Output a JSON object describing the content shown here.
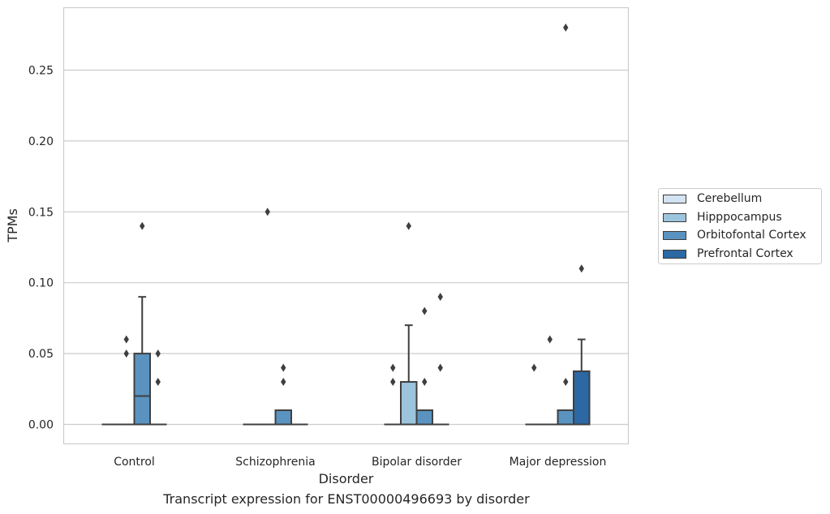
{
  "chart_data": {
    "type": "box",
    "xlabel": "Disorder",
    "ylabel": "TPMs",
    "ylim": [
      -0.014,
      0.294
    ],
    "yticks": [
      "0.00",
      "0.05",
      "0.10",
      "0.15",
      "0.20",
      "0.25"
    ],
    "ytick_values": [
      0.0,
      0.05,
      0.1,
      0.15,
      0.2,
      0.25
    ],
    "grid": true,
    "legend_placement": "right",
    "categories": [
      "Control",
      "Schizophrenia",
      "Bipolar disorder",
      "Major depression"
    ],
    "series": [
      {
        "name": "Cerebellum",
        "color": "#d3e3f2",
        "boxes": [
          {
            "q1": 0,
            "median": 0,
            "q3": 0,
            "whisker_low": 0,
            "whisker_high": 0,
            "outliers": []
          },
          {
            "q1": 0,
            "median": 0,
            "q3": 0,
            "whisker_low": 0,
            "whisker_high": 0,
            "outliers": []
          },
          {
            "q1": 0,
            "median": 0,
            "q3": 0,
            "whisker_low": 0,
            "whisker_high": 0,
            "outliers": [
              0.04,
              0.03
            ]
          },
          {
            "q1": 0,
            "median": 0,
            "q3": 0,
            "whisker_low": 0,
            "whisker_high": 0,
            "outliers": [
              0.04
            ]
          }
        ]
      },
      {
        "name": "Hipppocampus",
        "color": "#9cc4dc",
        "boxes": [
          {
            "q1": 0,
            "median": 0,
            "q3": 0,
            "whisker_low": 0,
            "whisker_high": 0,
            "outliers": [
              0.06,
              0.05
            ]
          },
          {
            "q1": 0,
            "median": 0,
            "q3": 0,
            "whisker_low": 0,
            "whisker_high": 0,
            "outliers": [
              0.15
            ]
          },
          {
            "q1": 0,
            "median": 0,
            "q3": 0.03,
            "whisker_low": 0,
            "whisker_high": 0.07,
            "outliers": [
              0.14
            ]
          },
          {
            "q1": 0,
            "median": 0,
            "q3": 0,
            "whisker_low": 0,
            "whisker_high": 0,
            "outliers": [
              0.06
            ]
          }
        ]
      },
      {
        "name": "Orbitofontal Cortex",
        "color": "#5a93c0",
        "boxes": [
          {
            "q1": 0,
            "median": 0.02,
            "q3": 0.05,
            "whisker_low": 0,
            "whisker_high": 0.09,
            "outliers": [
              0.14
            ]
          },
          {
            "q1": 0,
            "median": 0,
            "q3": 0.01,
            "whisker_low": 0,
            "whisker_high": 0.01,
            "outliers": [
              0.04,
              0.03
            ]
          },
          {
            "q1": 0,
            "median": 0,
            "q3": 0.01,
            "whisker_low": 0,
            "whisker_high": 0.01,
            "outliers": [
              0.08,
              0.03
            ]
          },
          {
            "q1": 0,
            "median": 0,
            "q3": 0.01,
            "whisker_low": 0,
            "whisker_high": 0.01,
            "outliers": [
              0.28,
              0.03
            ]
          }
        ]
      },
      {
        "name": "Prefrontal Cortex",
        "color": "#2b68a4",
        "boxes": [
          {
            "q1": 0,
            "median": 0,
            "q3": 0,
            "whisker_low": 0,
            "whisker_high": 0,
            "outliers": [
              0.05,
              0.03
            ]
          },
          {
            "q1": 0,
            "median": 0,
            "q3": 0,
            "whisker_low": 0,
            "whisker_high": 0,
            "outliers": []
          },
          {
            "q1": 0,
            "median": 0,
            "q3": 0,
            "whisker_low": 0,
            "whisker_high": 0,
            "outliers": [
              0.09,
              0.04
            ]
          },
          {
            "q1": 0,
            "median": 0,
            "q3": 0.0375,
            "whisker_low": 0,
            "whisker_high": 0.06,
            "outliers": [
              0.11
            ]
          }
        ]
      }
    ],
    "caption": "Transcript expression for ENST00000496693 by disorder"
  }
}
